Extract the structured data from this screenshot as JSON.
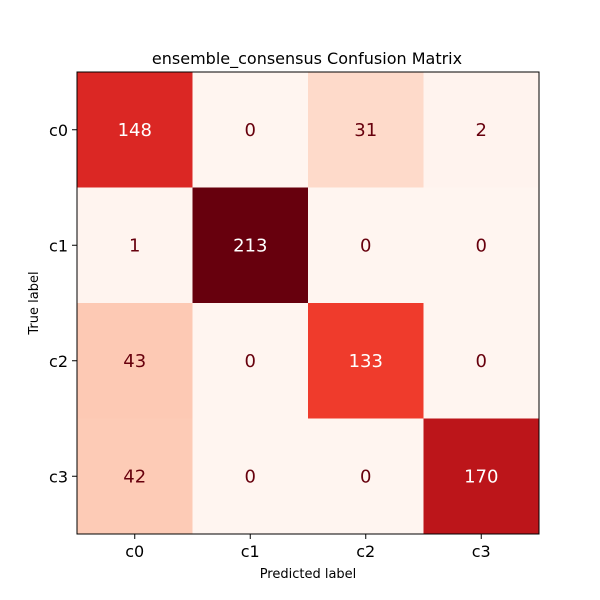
{
  "chart_data": {
    "type": "heatmap",
    "title": "ensemble_consensus Confusion Matrix",
    "xlabel": "Predicted label",
    "ylabel": "True label",
    "x_categories": [
      "c0",
      "c1",
      "c2",
      "c3"
    ],
    "y_categories": [
      "c0",
      "c1",
      "c2",
      "c3"
    ],
    "values": [
      [
        148,
        0,
        31,
        2
      ],
      [
        1,
        213,
        0,
        0
      ],
      [
        43,
        0,
        133,
        0
      ],
      [
        42,
        0,
        0,
        170
      ]
    ],
    "colormap": "Reds",
    "value_range": [
      0,
      213
    ],
    "grid": false,
    "colorbar": false
  }
}
